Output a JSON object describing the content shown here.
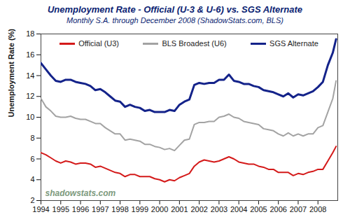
{
  "chart_data": {
    "type": "line",
    "title": "Unemployment Rate - Official (U-3 & U-6) vs. SGS Alternate",
    "subtitle": "Monthly S.A. through December 2008 (ShadowStats.com, BLS)",
    "y_label": "Unemployment Rate (%)",
    "annotations": [
      "shadowstats.com"
    ],
    "x": [
      1994,
      1994.25,
      1994.5,
      1994.75,
      1995,
      1995.25,
      1995.5,
      1995.75,
      1996,
      1996.25,
      1996.5,
      1996.75,
      1997,
      1997.25,
      1997.5,
      1997.75,
      1998,
      1998.25,
      1998.5,
      1998.75,
      1999,
      1999.25,
      1999.5,
      1999.75,
      2000,
      2000.25,
      2000.5,
      2000.75,
      2001,
      2001.25,
      2001.5,
      2001.75,
      2002,
      2002.25,
      2002.5,
      2002.75,
      2003,
      2003.25,
      2003.5,
      2003.75,
      2004,
      2004.25,
      2004.5,
      2004.75,
      2005,
      2005.25,
      2005.5,
      2005.75,
      2006,
      2006.25,
      2006.5,
      2006.75,
      2007,
      2007.25,
      2007.5,
      2007.75,
      2008,
      2008.25,
      2008.5,
      2008.75,
      2008.917
    ],
    "series": [
      {
        "name": "Official (U3)",
        "color": "#d41a1a",
        "values": [
          6.6,
          6.4,
          6.1,
          5.8,
          5.6,
          5.8,
          5.7,
          5.5,
          5.6,
          5.6,
          5.5,
          5.2,
          5.3,
          5.1,
          4.9,
          4.7,
          4.6,
          4.3,
          4.5,
          4.5,
          4.3,
          4.3,
          4.3,
          4.1,
          4.0,
          3.8,
          4.0,
          3.9,
          4.2,
          4.4,
          4.6,
          5.3,
          5.7,
          5.9,
          5.8,
          5.7,
          5.8,
          6.0,
          6.2,
          6.0,
          5.7,
          5.6,
          5.5,
          5.5,
          5.3,
          5.2,
          5.0,
          5.0,
          4.7,
          4.7,
          4.7,
          4.4,
          4.6,
          4.5,
          4.7,
          4.8,
          5.0,
          5.0,
          5.8,
          6.6,
          7.2
        ]
      },
      {
        "name": "BLS Broadest (U6)",
        "color": "#a3a3a3",
        "values": [
          11.8,
          11.0,
          10.6,
          10.1,
          10.0,
          10.0,
          10.1,
          9.9,
          9.8,
          9.8,
          9.6,
          9.4,
          9.4,
          9.0,
          8.7,
          8.4,
          8.4,
          7.8,
          7.9,
          7.8,
          7.7,
          7.4,
          7.4,
          7.2,
          7.1,
          6.9,
          7.0,
          6.8,
          7.3,
          7.8,
          7.9,
          9.3,
          9.5,
          9.5,
          9.6,
          9.6,
          10.0,
          10.1,
          10.3,
          10.0,
          9.9,
          9.6,
          9.5,
          9.4,
          9.3,
          8.9,
          8.8,
          8.7,
          8.4,
          8.2,
          8.5,
          8.2,
          8.4,
          8.2,
          8.4,
          8.4,
          9.0,
          9.2,
          10.5,
          11.8,
          13.5
        ]
      },
      {
        "name": "SGS Alternate",
        "color": "#14238a",
        "values": [
          15.2,
          14.6,
          14.0,
          13.5,
          13.4,
          13.6,
          13.6,
          13.4,
          13.3,
          13.2,
          13.0,
          12.6,
          12.7,
          12.4,
          12.0,
          11.6,
          11.5,
          11.0,
          11.2,
          11.0,
          10.9,
          10.6,
          10.7,
          10.5,
          10.5,
          10.5,
          10.7,
          10.6,
          11.2,
          11.5,
          11.7,
          13.1,
          13.3,
          13.2,
          13.3,
          13.3,
          13.6,
          13.6,
          14.1,
          13.5,
          13.4,
          13.2,
          13.2,
          13.0,
          12.9,
          12.6,
          12.5,
          12.4,
          12.2,
          12.0,
          12.3,
          11.9,
          12.2,
          12.1,
          12.3,
          12.5,
          12.9,
          13.4,
          15.0,
          16.2,
          17.5
        ]
      }
    ],
    "xlim": [
      1994,
      2009
    ],
    "xticks": [
      1994,
      1995,
      1996,
      1997,
      1998,
      1999,
      2000,
      2001,
      2002,
      2003,
      2004,
      2005,
      2006,
      2007,
      2008
    ],
    "ylim": [
      2,
      18
    ],
    "yticks": [
      2,
      4,
      6,
      8,
      10,
      12,
      14,
      16,
      18
    ],
    "grid": false,
    "legend": "top"
  }
}
